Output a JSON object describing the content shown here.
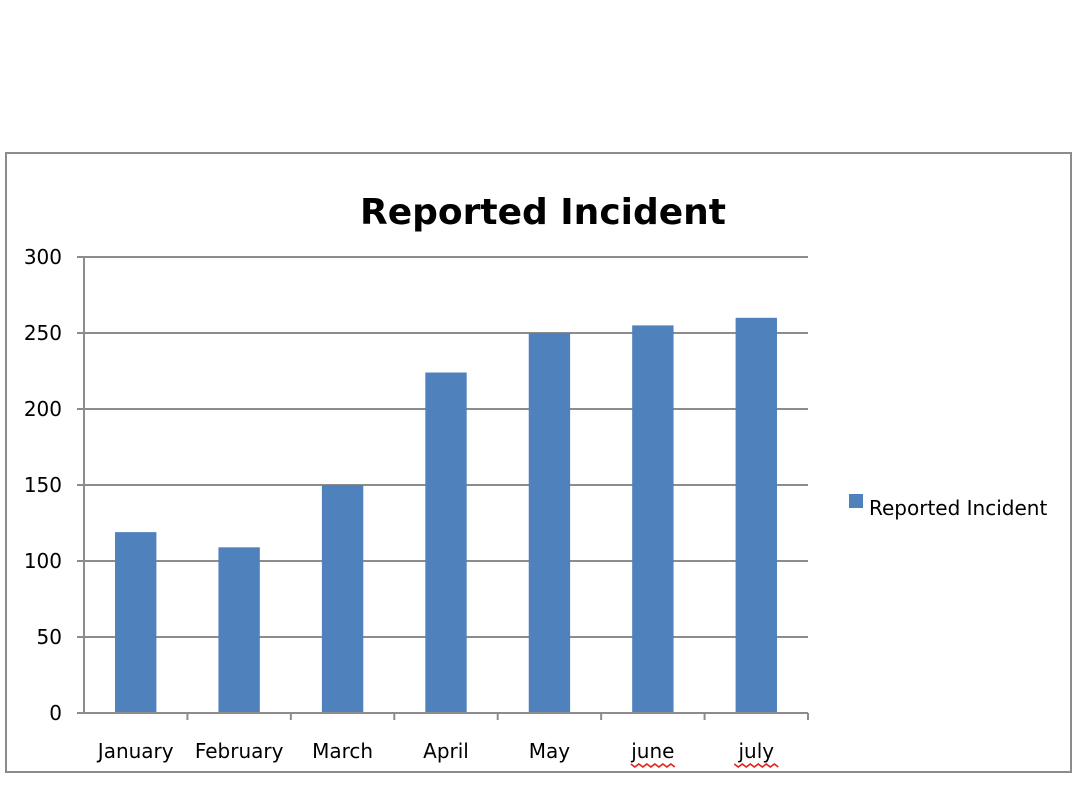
{
  "chart_data": {
    "type": "bar",
    "title": "Reported Incident",
    "xlabel": "",
    "ylabel": "",
    "categories": [
      "January",
      "February",
      "March",
      "April",
      "May",
      "june",
      "july"
    ],
    "series": [
      {
        "name": "Reported Incident",
        "values": [
          119,
          109,
          150,
          224,
          250,
          255,
          260
        ]
      }
    ],
    "ylim": [
      0,
      300
    ],
    "yticks": [
      0,
      50,
      100,
      150,
      200,
      250,
      300
    ],
    "grid": true,
    "legend": "right",
    "colors": {
      "bar": "#4f81bd",
      "grid": "#8c8c8c",
      "axis": "#8c8c8c",
      "spellcheck": "#e02020"
    },
    "spellcheck_flagged": [
      "june",
      "july"
    ]
  }
}
